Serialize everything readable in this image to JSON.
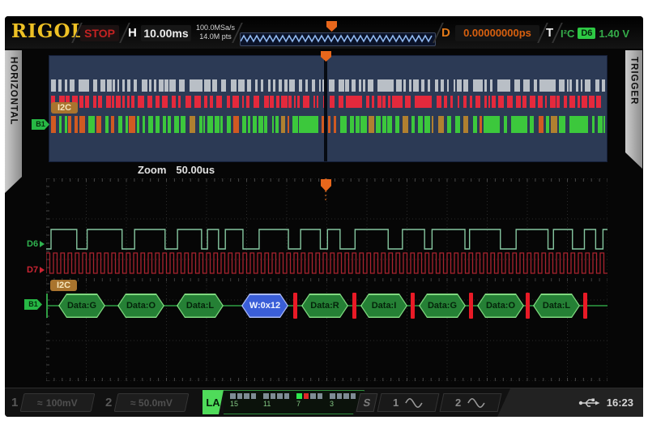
{
  "header": {
    "logo": "RIGOL",
    "run_status": "STOP",
    "h_label": "H",
    "timebase": "10.00ms",
    "sample_rate": "100.0MSa/s",
    "memory_depth": "14.0M pts",
    "delay_label": "D",
    "delay_value": "0.00000000ps",
    "trigger_label": "T",
    "trigger_type": "I²C",
    "trigger_source": "D6",
    "trigger_level": "1.40 V"
  },
  "side_tabs": {
    "left": "HORIZONTAL",
    "right": "TRIGGER"
  },
  "overview": {
    "bus_decode_label": "I2C",
    "bus_tag": "B1"
  },
  "zoom_view": {
    "zoom_label": "Zoom",
    "zoom_scale": "50.00us",
    "channel_d6": "D6",
    "channel_d7": "D7",
    "bus_decode_label": "I2C",
    "bus_tag": "B1",
    "decode_items": [
      {
        "kind": "data",
        "label": "Data:G"
      },
      {
        "kind": "data",
        "label": "Data:O"
      },
      {
        "kind": "data",
        "label": "Data:L"
      },
      {
        "kind": "write",
        "label": "W:0x12"
      },
      {
        "kind": "sep"
      },
      {
        "kind": "data",
        "label": "Data:R"
      },
      {
        "kind": "sep"
      },
      {
        "kind": "data",
        "label": "Data:I"
      },
      {
        "kind": "sep"
      },
      {
        "kind": "data",
        "label": "Data:G"
      },
      {
        "kind": "sep"
      },
      {
        "kind": "data",
        "label": "Data:O"
      },
      {
        "kind": "sep"
      },
      {
        "kind": "data",
        "label": "Data:L"
      },
      {
        "kind": "sep"
      }
    ]
  },
  "status_bar": {
    "ch1": {
      "number": "1",
      "coupling": "≈",
      "scale": "100mV"
    },
    "ch2": {
      "number": "2",
      "coupling": "≈",
      "scale": "50.0mV"
    },
    "la": {
      "label": "LA",
      "tick_labels": [
        "15",
        "11",
        "7",
        "3"
      ],
      "active_green": 7,
      "active_red": 6
    },
    "source_label": "S",
    "source1": "1",
    "source2": "2",
    "time": "16:23"
  },
  "colors": {
    "accent_green": "#35ad4a",
    "accent_red": "#e81a26",
    "accent_orange": "#e8671c",
    "logo_gold": "#eec125",
    "decode_blue": "#3a5ed8",
    "overview_bg": "#2c3a55"
  }
}
